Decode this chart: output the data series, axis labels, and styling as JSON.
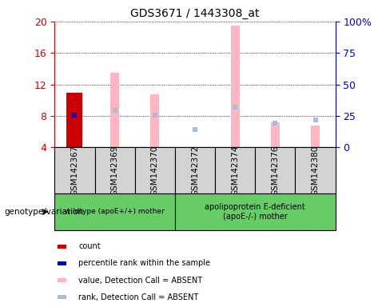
{
  "title": "GDS3671 / 1443308_at",
  "samples": [
    "GSM142367",
    "GSM142369",
    "GSM142370",
    "GSM142372",
    "GSM142374",
    "GSM142376",
    "GSM142380"
  ],
  "ylim_left": [
    4,
    20
  ],
  "ylim_right": [
    0,
    100
  ],
  "yticks_left": [
    4,
    8,
    12,
    16,
    20
  ],
  "yticks_right": [
    0,
    25,
    50,
    75,
    100
  ],
  "count_color": "#CC0000",
  "percentile_color": "#0000CC",
  "absent_value_color": "#FFB6C1",
  "absent_rank_color": "#AABBDD",
  "count_values": [
    10.9,
    null,
    null,
    null,
    null,
    null,
    null
  ],
  "percentile_rank_values": [
    8.1,
    null,
    null,
    null,
    null,
    null,
    null
  ],
  "absent_value_top": [
    null,
    13.5,
    10.7,
    null,
    19.5,
    7.2,
    6.8
  ],
  "absent_rank_value": [
    null,
    8.7,
    8.1,
    6.3,
    9.1,
    7.1,
    7.5
  ],
  "bar_width": 0.4,
  "absent_bar_width": 0.22,
  "background_plot": "#FFFFFF",
  "background_label": "#D3D3D3",
  "green_color": "#66CC66",
  "left_axis_color": "#CC0000",
  "right_axis_color": "#0000CC",
  "group1_label": "wildtype (apoE+/+) mother",
  "group1_indices": [
    0,
    1,
    2
  ],
  "group2_label": "apolipoprotein E-deficient\n(apoE-/-) mother",
  "group2_indices": [
    3,
    4,
    5,
    6
  ],
  "legend_labels": [
    "count",
    "percentile rank within the sample",
    "value, Detection Call = ABSENT",
    "rank, Detection Call = ABSENT"
  ],
  "legend_colors": [
    "#CC0000",
    "#0000CC",
    "#FFB6C1",
    "#AABBDD"
  ],
  "genotype_label": "genotype/variation"
}
